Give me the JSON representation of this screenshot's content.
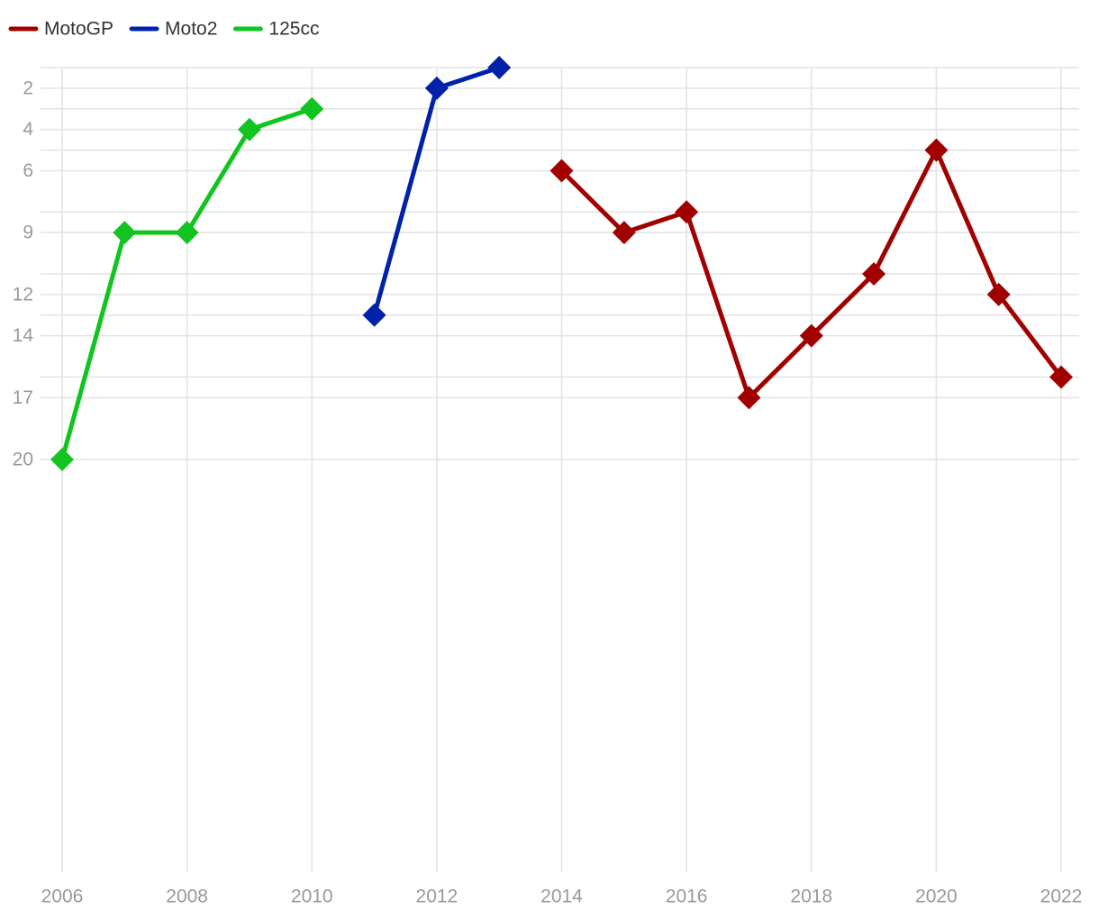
{
  "chart_data": {
    "type": "line",
    "x": [
      2006,
      2007,
      2008,
      2009,
      2010,
      2011,
      2012,
      2013,
      2014,
      2015,
      2016,
      2017,
      2018,
      2019,
      2020,
      2021,
      2022
    ],
    "series": [
      {
        "name": "MotoGP",
        "color": "#a00000",
        "values": [
          null,
          null,
          null,
          null,
          null,
          null,
          null,
          null,
          6,
          9,
          8,
          17,
          14,
          11,
          5,
          12,
          16
        ]
      },
      {
        "name": "Moto2",
        "color": "#0022aa",
        "values": [
          null,
          null,
          null,
          null,
          null,
          13,
          2,
          1,
          null,
          null,
          null,
          null,
          null,
          null,
          null,
          null,
          null
        ]
      },
      {
        "name": "125cc",
        "color": "#11c41f",
        "values": [
          20,
          9,
          9,
          4,
          3,
          null,
          null,
          null,
          null,
          null,
          null,
          null,
          null,
          null,
          null,
          null,
          null
        ]
      }
    ],
    "xlim": [
      2006,
      2022
    ],
    "xticks": [
      2006,
      2008,
      2010,
      2012,
      2014,
      2016,
      2018,
      2020,
      2022
    ],
    "ylim": [
      1,
      40
    ],
    "y_reversed": true,
    "yticks": [
      2,
      4,
      6,
      9,
      12,
      14,
      17,
      20
    ],
    "minor_gridlines": [
      1,
      3,
      5,
      8,
      11,
      13,
      16
    ],
    "grid": true,
    "legend": "top-left",
    "marker": "diamond"
  }
}
